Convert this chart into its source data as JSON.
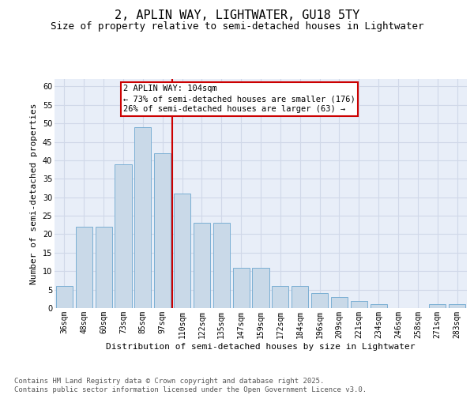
{
  "title": "2, APLIN WAY, LIGHTWATER, GU18 5TY",
  "subtitle": "Size of property relative to semi-detached houses in Lightwater",
  "xlabel": "Distribution of semi-detached houses by size in Lightwater",
  "ylabel": "Number of semi-detached properties",
  "categories": [
    "36sqm",
    "48sqm",
    "60sqm",
    "73sqm",
    "85sqm",
    "97sqm",
    "110sqm",
    "122sqm",
    "135sqm",
    "147sqm",
    "159sqm",
    "172sqm",
    "184sqm",
    "196sqm",
    "209sqm",
    "221sqm",
    "234sqm",
    "246sqm",
    "258sqm",
    "271sqm",
    "283sqm"
  ],
  "values": [
    6,
    22,
    22,
    39,
    49,
    42,
    31,
    23,
    23,
    11,
    11,
    6,
    6,
    4,
    3,
    2,
    1,
    0,
    0,
    1,
    1
  ],
  "bar_color": "#c9d9e8",
  "bar_edgecolor": "#7bafd4",
  "vline_index": 6,
  "vline_color": "#cc0000",
  "vline_label": "2 APLIN WAY: 104sqm",
  "annotation_line1": "← 73% of semi-detached houses are smaller (176)",
  "annotation_line2": "26% of semi-detached houses are larger (63) →",
  "annotation_box_edgecolor": "#cc0000",
  "ylim": [
    0,
    62
  ],
  "yticks": [
    0,
    5,
    10,
    15,
    20,
    25,
    30,
    35,
    40,
    45,
    50,
    55,
    60
  ],
  "grid_color": "#d0d8e8",
  "background_color": "#e8eef8",
  "footer_line1": "Contains HM Land Registry data © Crown copyright and database right 2025.",
  "footer_line2": "Contains public sector information licensed under the Open Government Licence v3.0.",
  "title_fontsize": 11,
  "subtitle_fontsize": 9,
  "axis_label_fontsize": 8,
  "tick_fontsize": 7,
  "annotation_fontsize": 7.5,
  "footer_fontsize": 6.5
}
